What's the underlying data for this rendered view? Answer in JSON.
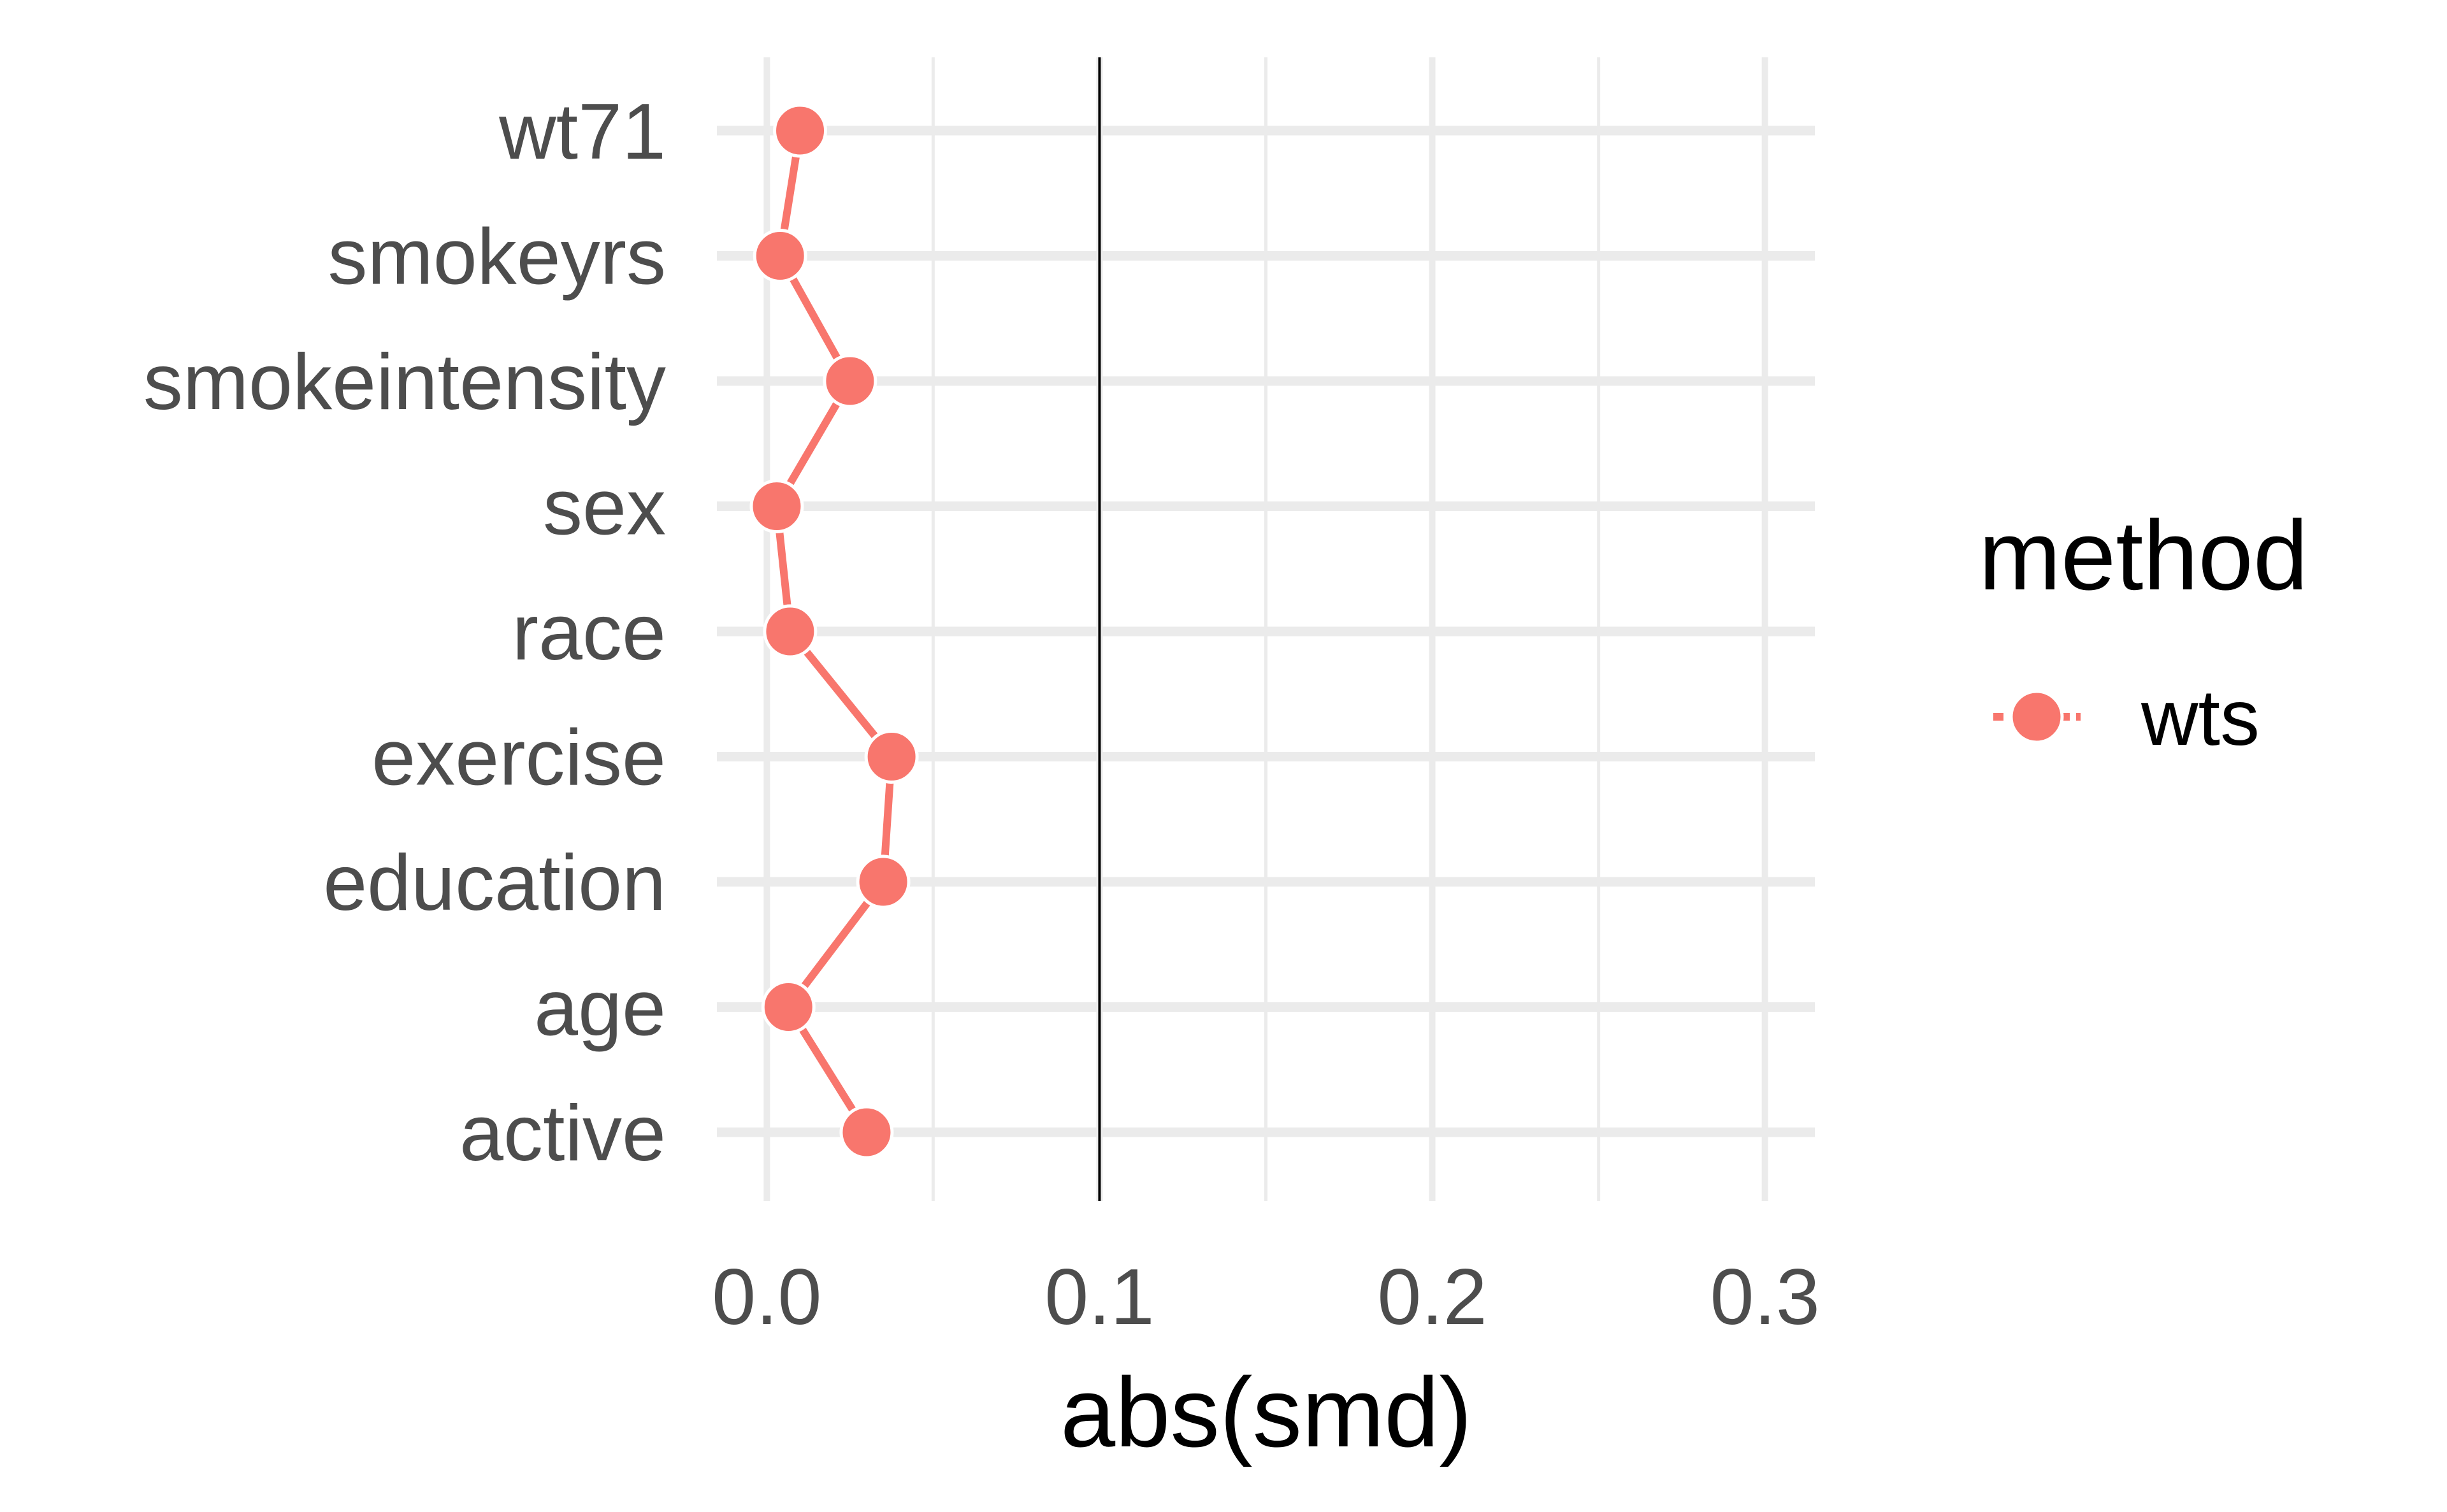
{
  "chart_data": {
    "type": "line",
    "xlabel": "abs(smd)",
    "ylabel": "",
    "xlim": [
      -0.015,
      0.315
    ],
    "x_ticks": [
      0.0,
      0.1,
      0.2,
      0.3
    ],
    "x_tick_labels": [
      "0.0",
      "0.1",
      "0.2",
      "0.3"
    ],
    "categories": [
      "active",
      "age",
      "education",
      "exercise",
      "race",
      "sex",
      "smokeintensity",
      "smokeyrs",
      "wt71"
    ],
    "series": [
      {
        "name": "wts",
        "color": "#F8766D",
        "values": [
          0.03,
          0.0065,
          0.035,
          0.0375,
          0.007,
          0.003,
          0.025,
          0.004,
          0.01
        ]
      }
    ],
    "reference_line": {
      "x": 0.1,
      "color": "#000000"
    },
    "grid": true,
    "legend": {
      "title": "method",
      "position": "right"
    }
  }
}
